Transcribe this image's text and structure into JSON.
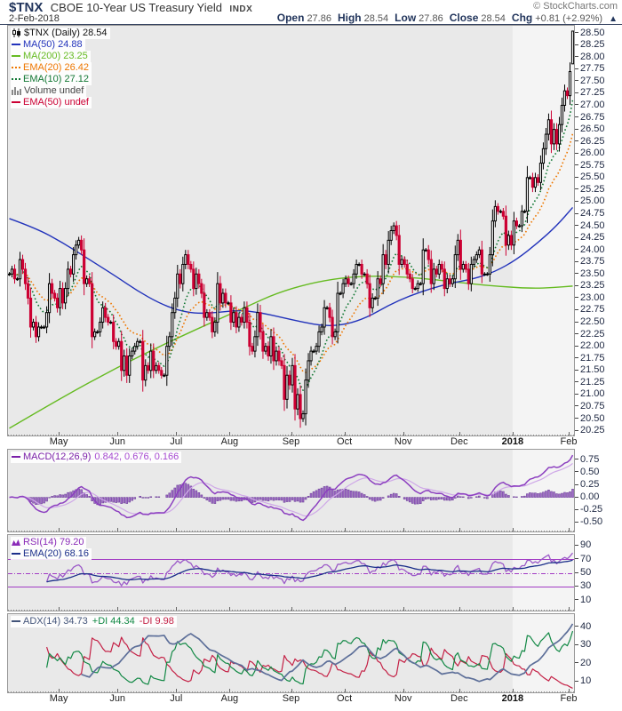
{
  "header": {
    "symbol": "$TNX",
    "title": "CBOE 10-Year US Treasury Yield",
    "exchange": "INDX",
    "date": "2-Feb-2018",
    "copyright": "© StockCharts.com",
    "copyright_color": "#777777",
    "label_color": "#22355c",
    "value_color": "#555555",
    "quote": {
      "open_label": "Open",
      "open": "27.86",
      "high_label": "High",
      "high": "28.54",
      "low_label": "Low",
      "low": "27.86",
      "close_label": "Close",
      "close": "28.54",
      "chg_label": "Chg",
      "chg_value": "+0.81 (+2.92%)",
      "arrow": "▲"
    }
  },
  "legends": {
    "main": [
      {
        "text": "$TNX (Daily) 28.54",
        "color": "#111111",
        "swatch": "candles"
      },
      {
        "text": "MA(50) 24.88",
        "color": "#2233bb",
        "swatch": "line"
      },
      {
        "text": "MA(200) 23.25",
        "color": "#66bb22",
        "swatch": "line"
      },
      {
        "text": "EMA(20) 26.42",
        "color": "#ee7700",
        "swatch": "dots"
      },
      {
        "text": "EMA(10) 27.12",
        "color": "#117733",
        "swatch": "dots"
      },
      {
        "text": "Volume undef",
        "color": "#444444",
        "swatch": "volume"
      },
      {
        "text": "EMA(50) undef",
        "color": "#cc0033",
        "swatch": "line"
      }
    ],
    "macd": {
      "name": "MACD(12,26,9)",
      "name_color": "#7a1fa8",
      "values": "0.842, 0.676, 0.166",
      "values_color": "#a64ad0"
    },
    "rsi": {
      "name": "RSI(14) 79.20",
      "name_color": "#8a2bb8",
      "ema": "EMA(20) 68.16",
      "ema_color": "#1b2f8a"
    },
    "adx": {
      "adx": "ADX(14) 34.73",
      "adx_color": "#44557a",
      "plus": "+DI 44.34",
      "plus_color": "#118844",
      "minus": "-DI 9.98",
      "minus_color": "#c42045"
    }
  },
  "chart_data": [
    {
      "panel": "price",
      "type": "candlestick",
      "symbol": "$TNX",
      "timeframe": "Daily",
      "ylim": [
        20.15,
        28.65
      ],
      "ytick_min": 20.25,
      "ytick_max": 28.5,
      "ytick_step": 0.25,
      "panel_bg": "#e9e9e9",
      "recent_band_bg": "#f4f4f4",
      "recent_band_start": 189,
      "up_color": "#000000",
      "down_color": "#cc0033",
      "months": [
        [
          "May",
          19
        ],
        [
          "Jun",
          41
        ],
        [
          "Jul",
          63
        ],
        [
          "Aug",
          83
        ],
        [
          "Sep",
          106
        ],
        [
          "Oct",
          126
        ],
        [
          "Nov",
          148
        ],
        [
          "Dec",
          169
        ],
        [
          "2018",
          189,
          true
        ],
        [
          "Feb",
          210
        ]
      ],
      "closes": [
        23.5,
        23.6,
        23.4,
        23.4,
        23.8,
        23.6,
        23.3,
        23.0,
        22.4,
        22.5,
        22.2,
        22.4,
        22.4,
        22.4,
        22.7,
        23.3,
        23.1,
        23.0,
        22.8,
        23.2,
        22.9,
        23.2,
        23.6,
        23.5,
        23.9,
        24.1,
        24.2,
        24.0,
        23.3,
        23.4,
        23.3,
        22.2,
        22.3,
        22.3,
        22.5,
        22.8,
        22.6,
        22.5,
        22.5,
        22.1,
        22.0,
        22.1,
        21.5,
        21.8,
        21.4,
        21.8,
        21.9,
        22.0,
        22.1,
        22.1,
        21.3,
        21.6,
        21.5,
        21.9,
        21.5,
        21.6,
        21.5,
        21.4,
        21.4,
        22.0,
        22.2,
        22.7,
        23.0,
        23.5,
        23.3,
        23.7,
        23.9,
        23.7,
        23.6,
        23.2,
        23.5,
        23.3,
        23.1,
        22.6,
        22.7,
        22.6,
        22.3,
        22.5,
        23.3,
        22.9,
        23.1,
        22.9,
        22.9,
        22.5,
        22.7,
        22.4,
        22.6,
        22.5,
        22.8,
        22.5,
        22.0,
        21.9,
        22.2,
        22.7,
        22.3,
        21.9,
        22.0,
        21.8,
        22.2,
        21.7,
        21.9,
        21.7,
        21.6,
        20.9,
        21.4,
        21.2,
        21.6,
        20.7,
        21.0,
        20.5,
        20.6,
        21.3,
        21.7,
        21.9,
        21.9,
        22.0,
        22.3,
        22.4,
        22.8,
        22.8,
        22.6,
        22.2,
        22.3,
        23.1,
        23.1,
        23.3,
        23.4,
        23.3,
        23.3,
        23.5,
        23.7,
        23.7,
        23.5,
        23.5,
        23.3,
        22.8,
        23.0,
        23.0,
        23.4,
        23.3,
        23.9,
        23.7,
        24.2,
        24.4,
        24.5,
        24.3,
        23.7,
        23.8,
        23.7,
        23.5,
        23.4,
        23.2,
        23.2,
        23.3,
        23.3,
        24.0,
        24.0,
        23.8,
        23.3,
        23.6,
        23.5,
        23.7,
        23.6,
        23.2,
        23.4,
        23.3,
        23.4,
        23.9,
        24.2,
        23.6,
        23.7,
        23.6,
        23.3,
        23.7,
        23.8,
        23.9,
        24.0,
        23.5,
        23.5,
        23.5,
        23.9,
        24.6,
        24.9,
        24.8,
        24.8,
        24.7,
        24.1,
        24.3,
        24.1,
        24.6,
        24.5,
        24.5,
        24.8,
        24.8,
        25.5,
        25.5,
        25.3,
        25.5,
        25.4,
        25.8,
        26.1,
        26.4,
        26.7,
        26.2,
        26.5,
        26.2,
        26.6,
        27.0,
        27.3,
        27.2,
        27.7,
        28.54
      ],
      "last_candle": {
        "open": 27.86,
        "high": 28.54,
        "low": 27.86,
        "close": 28.54
      },
      "overlays": [
        {
          "name": "MA(50)",
          "value": 24.88,
          "color": "#2233bb",
          "style": "solid",
          "anchors": [
            [
              0,
              24.65
            ],
            [
              10,
              24.45
            ],
            [
              20,
              24.15
            ],
            [
              30,
              23.8
            ],
            [
              40,
              23.45
            ],
            [
              48,
              23.15
            ],
            [
              56,
              22.9
            ],
            [
              63,
              22.75
            ],
            [
              70,
              22.68
            ],
            [
              78,
              22.7
            ],
            [
              86,
              22.75
            ],
            [
              94,
              22.7
            ],
            [
              102,
              22.6
            ],
            [
              110,
              22.5
            ],
            [
              118,
              22.42
            ],
            [
              126,
              22.45
            ],
            [
              134,
              22.6
            ],
            [
              142,
              22.85
            ],
            [
              150,
              23.05
            ],
            [
              158,
              23.2
            ],
            [
              166,
              23.32
            ],
            [
              174,
              23.4
            ],
            [
              182,
              23.55
            ],
            [
              190,
              23.8
            ],
            [
              198,
              24.15
            ],
            [
              205,
              24.5
            ],
            [
              211,
              24.88
            ]
          ]
        },
        {
          "name": "MA(200)",
          "value": 23.25,
          "color": "#66bb22",
          "style": "solid",
          "anchors": [
            [
              0,
              20.3
            ],
            [
              20,
              20.95
            ],
            [
              40,
              21.55
            ],
            [
              60,
              22.1
            ],
            [
              80,
              22.6
            ],
            [
              90,
              22.85
            ],
            [
              100,
              23.1
            ],
            [
              112,
              23.3
            ],
            [
              124,
              23.42
            ],
            [
              136,
              23.46
            ],
            [
              148,
              23.44
            ],
            [
              160,
              23.38
            ],
            [
              172,
              23.3
            ],
            [
              184,
              23.24
            ],
            [
              196,
              23.2
            ],
            [
              204,
              23.22
            ],
            [
              211,
              23.25
            ]
          ]
        },
        {
          "name": "EMA(20)",
          "value": 26.42,
          "color": "#ee7700",
          "style": "dotted",
          "period": 20
        },
        {
          "name": "EMA(10)",
          "value": 27.12,
          "color": "#117733",
          "style": "dotted",
          "period": 10
        },
        {
          "name": "Volume",
          "value": "undef"
        },
        {
          "name": "EMA(50)",
          "value": "undef",
          "color": "#cc0033"
        }
      ]
    },
    {
      "panel": "macd",
      "type": "line+histogram",
      "params": [
        12,
        26,
        9
      ],
      "last_values": {
        "macd": 0.842,
        "signal": 0.676,
        "hist": 0.166
      },
      "ylim": [
        -0.68,
        0.95
      ],
      "yticks": [
        0.75,
        0.5,
        0.25,
        0.0,
        -0.25,
        -0.5
      ],
      "line_color": "#8c3fc0",
      "signal_color": "#cfa8e8",
      "hist_fill": "#a06cc8",
      "hist_stroke": "#71449b"
    },
    {
      "panel": "rsi",
      "type": "line",
      "params": [
        14
      ],
      "last": 79.2,
      "ema_period": 20,
      "ema_last": 68.16,
      "levels": [
        70,
        50,
        30
      ],
      "ylim": [
        -5,
        105
      ],
      "yticks": [
        90,
        70,
        50,
        30,
        10
      ],
      "line_color": "#9b59c8",
      "ema_color": "#1b2f8a",
      "level_color": "#a23bc4"
    },
    {
      "panel": "adx",
      "type": "line",
      "params": [
        14
      ],
      "last": {
        "adx": 34.73,
        "plus_di": 44.34,
        "minus_di": 9.98
      },
      "ylim": [
        4,
        47
      ],
      "yticks": [
        40,
        30,
        20,
        10
      ],
      "adx_color": "#5d6f99",
      "plus_color": "#118844",
      "minus_color": "#c42045"
    }
  ]
}
